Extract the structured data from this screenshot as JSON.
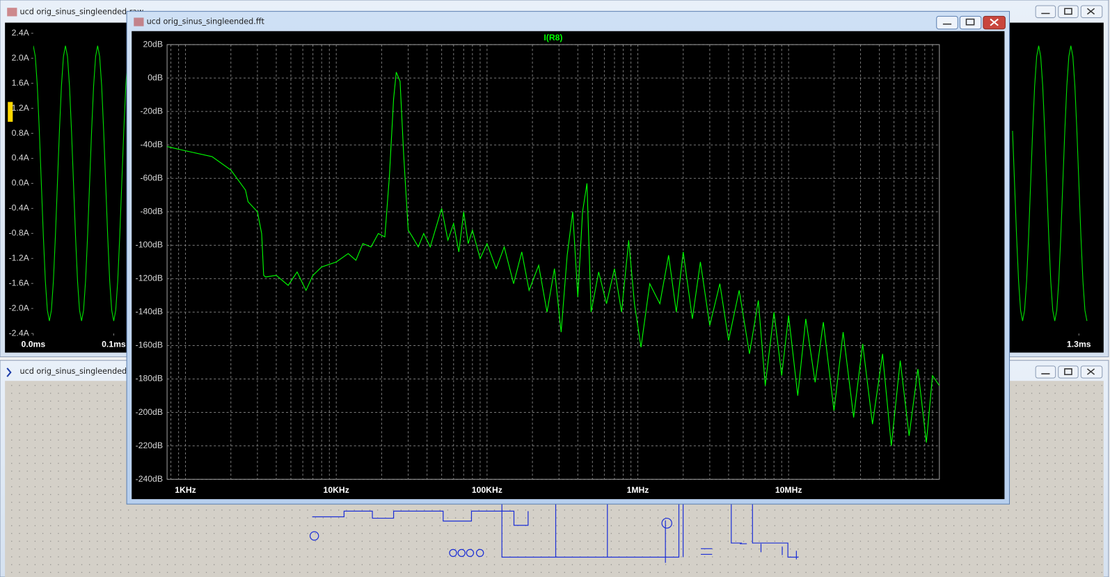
{
  "windows": [
    {
      "title": "ucd orig_sinus_singleended.raw"
    },
    {
      "title": "ucd orig_sinus_singleended.asc"
    },
    {
      "title": "ucd orig_sinus_singleended.fft"
    }
  ],
  "chart_data": [
    {
      "type": "line",
      "x": [
        0,
        0.0025,
        0.005,
        0.0075,
        0.01,
        0.0125,
        0.015,
        0.0175,
        0.02,
        0.0225,
        0.025,
        0.0275,
        0.03,
        0.0325,
        0.035,
        0.0375,
        0.04,
        0.0425,
        0.045,
        0.0475,
        0.05,
        0.0525,
        0.055,
        0.0575,
        0.06,
        0.0625,
        0.065,
        0.0675,
        0.07,
        0.0725,
        0.075,
        0.0775,
        0.08,
        0.0825,
        0.085,
        0.0875,
        0.09,
        0.0925,
        0.095,
        0.0975,
        0.1,
        0.1025,
        0.105,
        0.1075,
        0.11,
        0.1125,
        0.115,
        0.1175,
        0.6,
        1.2175,
        1.22,
        1.2225,
        1.225,
        1.2275,
        1.23,
        1.2325,
        1.235,
        1.2375,
        1.24,
        1.2425,
        1.245,
        1.2475,
        1.25,
        1.2525,
        1.255,
        1.2575,
        1.26,
        1.2625,
        1.265,
        1.2675,
        1.27,
        1.2725,
        1.275,
        1.2775,
        1.28,
        1.2825,
        1.285,
        1.2875,
        1.29,
        1.2925,
        1.295,
        1.2975,
        1.3,
        1.3025,
        1.305,
        1.3075,
        1.31
      ],
      "series": [
        {
          "color": "#00e000",
          "values": [
            2.2,
            2.03,
            1.56,
            0.84,
            0,
            -0.84,
            -1.56,
            -2.03,
            -2.2,
            -2.03,
            -1.56,
            -0.84,
            0,
            0.84,
            1.56,
            2.03,
            2.2,
            2.03,
            1.56,
            0.84,
            0,
            -0.84,
            -1.56,
            -2.03,
            -2.2,
            -2.03,
            -1.56,
            -0.84,
            0,
            0.84,
            1.56,
            2.03,
            2.2,
            2.03,
            1.56,
            0.84,
            0,
            -0.84,
            -1.56,
            -2.03,
            -2.2,
            -2.03,
            -1.56,
            -0.84,
            0,
            0.84,
            1.56,
            2.03,
            null,
            0.84,
            0,
            -0.84,
            -1.56,
            -2.03,
            -2.2,
            -2.03,
            -1.56,
            -0.84,
            0,
            0.84,
            1.56,
            2.03,
            2.2,
            2.03,
            1.56,
            0.84,
            0,
            -0.84,
            -1.56,
            -2.03,
            -2.2,
            -2.03,
            -1.56,
            -0.84,
            0,
            0.84,
            1.56,
            2.03,
            2.2,
            2.03,
            1.56,
            0.84,
            0,
            -0.84,
            -1.56,
            -2.03,
            -2.2
          ]
        }
      ],
      "xlim": [
        0,
        1.314
      ],
      "xticks": [
        {
          "value": 0,
          "label": "0.0ms"
        },
        {
          "value": 0.1,
          "label": "0.1ms"
        },
        {
          "value": 1.3,
          "label": "1.3ms"
        }
      ],
      "ylim": [
        -2.4,
        2.4
      ],
      "yticks": [
        {
          "value": 2.4,
          "label": "2.4A"
        },
        {
          "value": 2.0,
          "label": "2.0A"
        },
        {
          "value": 1.6,
          "label": "1.6A"
        },
        {
          "value": 1.2,
          "label": "1.2A"
        },
        {
          "value": 0.8,
          "label": "0.8A"
        },
        {
          "value": 0.4,
          "label": "0.4A"
        },
        {
          "value": 0,
          "label": "0.0A"
        },
        {
          "value": -0.4,
          "label": "-0.4A"
        },
        {
          "value": -0.8,
          "label": "-0.8A"
        },
        {
          "value": -1.2,
          "label": "-1.2A"
        },
        {
          "value": -1.6,
          "label": "-1.6A"
        },
        {
          "value": -2.0,
          "label": "-2.0A"
        },
        {
          "value": -2.4,
          "label": "-2.4A"
        }
      ],
      "grid": false,
      "log_x": false
    },
    {
      "type": "line",
      "x": [
        755,
        1000,
        1500,
        2000,
        2500,
        2600,
        3000,
        3200,
        3300,
        3400,
        4000,
        4800,
        5500,
        6300,
        7000,
        8000,
        10000,
        12000,
        13500,
        15000,
        17000,
        19000,
        21000,
        22500,
        24000,
        25000,
        26500,
        28000,
        30000,
        32000,
        35000,
        38000,
        42000,
        46000,
        50000,
        55000,
        60000,
        65000,
        70000,
        75000,
        80000,
        90000,
        100000,
        115000,
        130000,
        150000,
        170000,
        190000,
        220000,
        250000,
        280000,
        310000,
        340000,
        370000,
        400000,
        430000,
        460000,
        490000,
        550000,
        620000,
        700000,
        780000,
        870000,
        950000,
        1050000,
        1200000,
        1400000,
        1600000,
        1800000,
        2000000,
        2300000,
        2600000,
        3000000,
        3500000,
        4000000,
        4700000,
        5500000,
        6300000,
        7000000,
        8000000,
        9000000,
        10000000,
        11500000,
        13000000,
        15000000,
        17000000,
        20000000,
        23000000,
        27000000,
        31000000,
        36000000,
        42000000,
        48000000,
        55000000,
        63000000,
        72000000,
        82000000,
        90000000,
        100000000
      ],
      "series": [
        {
          "name": "I(R8)",
          "color": "#00ff00",
          "values": [
            -41,
            -43.5,
            -47,
            -55,
            -67,
            -74,
            -80,
            -93,
            -118,
            -119,
            -118,
            -124,
            -116,
            -127,
            -118,
            -113,
            -110,
            -105,
            -109,
            -99,
            -101,
            -93,
            -95,
            -59,
            -12.6,
            3.5,
            -2,
            -46,
            -91,
            -95,
            -101,
            -93,
            -101,
            -89,
            -78,
            -97,
            -87,
            -104,
            -80,
            -99,
            -91,
            -108,
            -99,
            -114,
            -101,
            -123,
            -104,
            -127,
            -112,
            -140,
            -114,
            -152,
            -106,
            -80,
            -131,
            -80,
            -63,
            -140,
            -116,
            -135,
            -114,
            -140,
            -97,
            -135,
            -161,
            -123,
            -135,
            -106,
            -140,
            -104,
            -144,
            -110,
            -148,
            -123,
            -157,
            -127,
            -165,
            -133,
            -184,
            -140,
            -178,
            -142,
            -190,
            -144,
            -182,
            -146,
            -199,
            -152,
            -203,
            -159,
            -207,
            -165,
            -220,
            -169,
            -214,
            -174,
            -218,
            -178,
            -184
          ]
        }
      ],
      "xlim": [
        755,
        100000000
      ],
      "xticks": [
        {
          "value": 1000,
          "label": "1KHz"
        },
        {
          "value": 10000,
          "label": "10KHz"
        },
        {
          "value": 100000,
          "label": "100KHz"
        },
        {
          "value": 1000000,
          "label": "1MHz"
        },
        {
          "value": 10000000,
          "label": "10MHz"
        }
      ],
      "ylim": [
        -240,
        20
      ],
      "yticks": [
        {
          "value": 20,
          "label": "20dB"
        },
        {
          "value": 0,
          "label": "0dB"
        },
        {
          "value": -20,
          "label": "-20dB"
        },
        {
          "value": -40,
          "label": "-40dB"
        },
        {
          "value": -60,
          "label": "-60dB"
        },
        {
          "value": -80,
          "label": "-80dB"
        },
        {
          "value": -100,
          "label": "-100dB"
        },
        {
          "value": -120,
          "label": "-120dB"
        },
        {
          "value": -140,
          "label": "-140dB"
        },
        {
          "value": -160,
          "label": "-160dB"
        },
        {
          "value": -180,
          "label": "-180dB"
        },
        {
          "value": -200,
          "label": "-200dB"
        },
        {
          "value": -220,
          "label": "-220dB"
        },
        {
          "value": -240,
          "label": "-240dB"
        }
      ],
      "grid": true,
      "log_x": true
    }
  ]
}
